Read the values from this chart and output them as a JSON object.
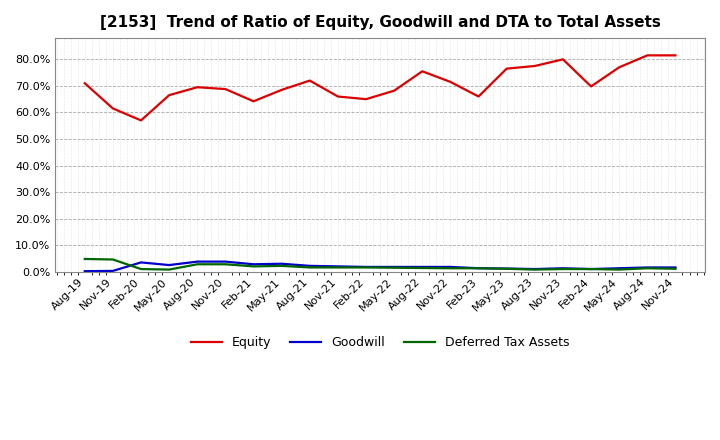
{
  "title": "[2153]  Trend of Ratio of Equity, Goodwill and DTA to Total Assets",
  "x_labels": [
    "Aug-19",
    "Nov-19",
    "Feb-20",
    "May-20",
    "Aug-20",
    "Nov-20",
    "Feb-21",
    "May-21",
    "Aug-21",
    "Nov-21",
    "Feb-22",
    "May-22",
    "Aug-22",
    "Nov-22",
    "Feb-23",
    "May-23",
    "Aug-23",
    "Nov-23",
    "Feb-24",
    "May-24",
    "Aug-24",
    "Nov-24"
  ],
  "equity": [
    0.71,
    0.615,
    0.57,
    0.665,
    0.695,
    0.688,
    0.642,
    0.685,
    0.72,
    0.66,
    0.65,
    0.682,
    0.755,
    0.715,
    0.66,
    0.765,
    0.775,
    0.8,
    0.698,
    0.77,
    0.815,
    0.815
  ],
  "goodwill": [
    0.002,
    0.003,
    0.035,
    0.025,
    0.038,
    0.038,
    0.028,
    0.03,
    0.022,
    0.02,
    0.018,
    0.018,
    0.018,
    0.018,
    0.013,
    0.012,
    0.01,
    0.013,
    0.01,
    0.013,
    0.016,
    0.016
  ],
  "dta": [
    0.048,
    0.046,
    0.01,
    0.008,
    0.028,
    0.028,
    0.02,
    0.022,
    0.016,
    0.016,
    0.016,
    0.015,
    0.014,
    0.013,
    0.013,
    0.011,
    0.008,
    0.01,
    0.01,
    0.008,
    0.013,
    0.011
  ],
  "equity_color": "#DD0000",
  "goodwill_color": "#0000CC",
  "dta_color": "#006600",
  "bg_color": "#FFFFFF",
  "plot_bg_color": "#FFFFFF",
  "major_grid_color": "#AAAAAA",
  "minor_grid_color": "#CCCCCC",
  "ylim": [
    0.0,
    0.88
  ],
  "yticks": [
    0.0,
    0.1,
    0.2,
    0.3,
    0.4,
    0.5,
    0.6,
    0.7,
    0.8
  ],
  "legend_labels": [
    "Equity",
    "Goodwill",
    "Deferred Tax Assets"
  ],
  "title_fontsize": 11,
  "axis_fontsize": 8,
  "legend_fontsize": 9,
  "linewidth": 1.6
}
